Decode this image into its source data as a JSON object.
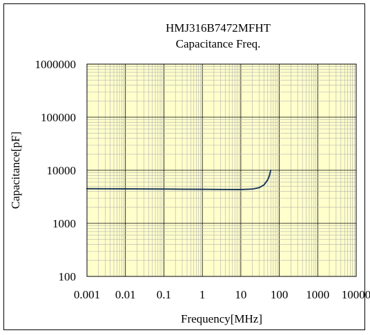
{
  "chart_data": {
    "type": "line",
    "title": "HMJ316B7472MFHT",
    "subtitle": "Capacitance Freq.",
    "xlabel": "Frequency[MHz]",
    "ylabel": "Capacitance[pF]",
    "x_scale": "log",
    "y_scale": "log",
    "xlim": [
      0.001,
      10000
    ],
    "ylim": [
      100,
      1000000
    ],
    "x_ticks": [
      "0.001",
      "0.01",
      "0.1",
      "1",
      "10",
      "100",
      "1000",
      "10000"
    ],
    "y_ticks": [
      "100",
      "1000",
      "10000",
      "100000",
      "1000000"
    ],
    "grid": true,
    "legend": "none",
    "plot_background": "#ffffcc",
    "grid_color": "#b0b0b0",
    "series": [
      {
        "color": "#1f3b5c",
        "x": [
          0.001,
          0.003,
          0.01,
          0.03,
          0.1,
          0.3,
          1,
          3,
          10,
          20,
          30,
          40,
          50,
          55,
          60
        ],
        "y": [
          4500,
          4480,
          4460,
          4440,
          4420,
          4400,
          4380,
          4350,
          4330,
          4420,
          4700,
          5300,
          6600,
          7800,
          10000
        ]
      }
    ]
  }
}
